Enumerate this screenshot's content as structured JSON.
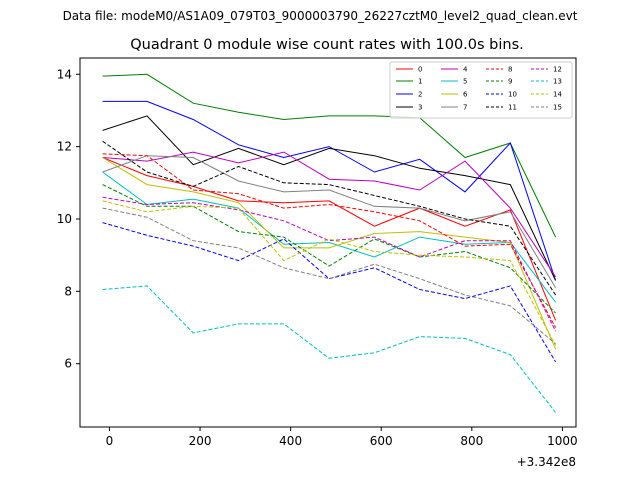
{
  "suptitle": "Data file: modeM0/AS1A09_079T03_9000003790_26227cztM0_level2_quad_clean.evt",
  "chart_data": {
    "type": "line",
    "title": "Quadrant 0 module wise count rates with 100.0s bins.",
    "xlabel": "",
    "ylabel": "",
    "x_offset_label": "+3.342e8",
    "xlim": [
      -65,
      1030
    ],
    "ylim": [
      4.25,
      14.45
    ],
    "xticks": [
      0,
      200,
      400,
      600,
      800,
      1000
    ],
    "yticks": [
      6,
      8,
      10,
      12,
      14
    ],
    "grid": false,
    "legend_position": "top-right",
    "x": [
      -15,
      83,
      185,
      285,
      385,
      485,
      585,
      685,
      785,
      885,
      985
    ],
    "series": [
      {
        "name": "0",
        "color": "#ff0000",
        "dash": "solid",
        "values": [
          11.7,
          11.2,
          10.9,
          10.5,
          10.45,
          10.5,
          9.8,
          10.3,
          9.8,
          10.25,
          7.2
        ]
      },
      {
        "name": "1",
        "color": "#008000",
        "dash": "solid",
        "values": [
          13.95,
          14.0,
          13.2,
          12.95,
          12.75,
          12.85,
          12.85,
          12.8,
          11.7,
          12.1,
          9.5
        ]
      },
      {
        "name": "2",
        "color": "#0000ff",
        "dash": "solid",
        "values": [
          13.25,
          13.25,
          12.75,
          12.05,
          11.7,
          12.0,
          11.3,
          11.65,
          10.75,
          12.1,
          8.3
        ]
      },
      {
        "name": "3",
        "color": "#000000",
        "dash": "solid",
        "values": [
          12.45,
          12.85,
          11.5,
          11.95,
          11.5,
          11.95,
          11.75,
          11.4,
          11.2,
          10.95,
          8.3
        ]
      },
      {
        "name": "4",
        "color": "#bf00bf",
        "dash": "solid",
        "values": [
          11.7,
          11.6,
          11.85,
          11.55,
          11.85,
          11.1,
          11.05,
          10.8,
          11.6,
          10.3,
          8.4
        ]
      },
      {
        "name": "5",
        "color": "#00bfbf",
        "dash": "solid",
        "values": [
          11.3,
          10.4,
          10.55,
          10.3,
          9.3,
          9.35,
          8.95,
          9.5,
          9.3,
          9.35,
          7.7
        ]
      },
      {
        "name": "6",
        "color": "#bfbf00",
        "dash": "solid",
        "values": [
          11.7,
          10.95,
          10.75,
          10.45,
          9.2,
          9.2,
          9.6,
          9.65,
          9.5,
          9.35,
          6.4
        ]
      },
      {
        "name": "7",
        "color": "#808080",
        "dash": "solid",
        "values": [
          11.3,
          11.75,
          11.7,
          11.05,
          10.75,
          10.8,
          10.35,
          10.3,
          9.95,
          10.2,
          8.1
        ]
      },
      {
        "name": "8",
        "color": "#ff0000",
        "dash": "dashed",
        "values": [
          11.8,
          11.75,
          10.8,
          10.7,
          10.3,
          10.4,
          10.2,
          9.95,
          9.25,
          9.3,
          7.0
        ]
      },
      {
        "name": "9",
        "color": "#008000",
        "dash": "dashed",
        "values": [
          10.95,
          10.35,
          10.35,
          9.65,
          9.5,
          8.7,
          9.45,
          8.95,
          9.1,
          8.65,
          7.4
        ]
      },
      {
        "name": "10",
        "color": "#0000ff",
        "dash": "dashed",
        "values": [
          9.9,
          9.55,
          9.25,
          8.85,
          9.45,
          8.35,
          8.65,
          8.05,
          7.8,
          8.15,
          6.05
        ]
      },
      {
        "name": "11",
        "color": "#000000",
        "dash": "dashed",
        "values": [
          12.15,
          11.3,
          10.9,
          11.45,
          11.0,
          10.95,
          10.65,
          10.35,
          10.0,
          9.8,
          7.9
        ]
      },
      {
        "name": "12",
        "color": "#bf00bf",
        "dash": "dashed",
        "values": [
          10.6,
          10.4,
          10.45,
          10.25,
          9.95,
          9.4,
          9.5,
          8.95,
          9.4,
          9.4,
          6.9
        ]
      },
      {
        "name": "13",
        "color": "#00bfbf",
        "dash": "dashed",
        "values": [
          8.05,
          8.15,
          6.85,
          7.1,
          7.1,
          6.15,
          6.3,
          6.75,
          6.7,
          6.25,
          4.65
        ]
      },
      {
        "name": "14",
        "color": "#bfbf00",
        "dash": "dashed",
        "values": [
          10.5,
          10.2,
          10.35,
          10.3,
          8.85,
          9.45,
          9.1,
          9.0,
          8.95,
          8.85,
          6.5
        ]
      },
      {
        "name": "15",
        "color": "#808080",
        "dash": "dashed",
        "values": [
          10.3,
          10.05,
          9.4,
          9.2,
          8.65,
          8.35,
          8.75,
          8.35,
          7.9,
          7.6,
          6.55
        ]
      }
    ]
  }
}
